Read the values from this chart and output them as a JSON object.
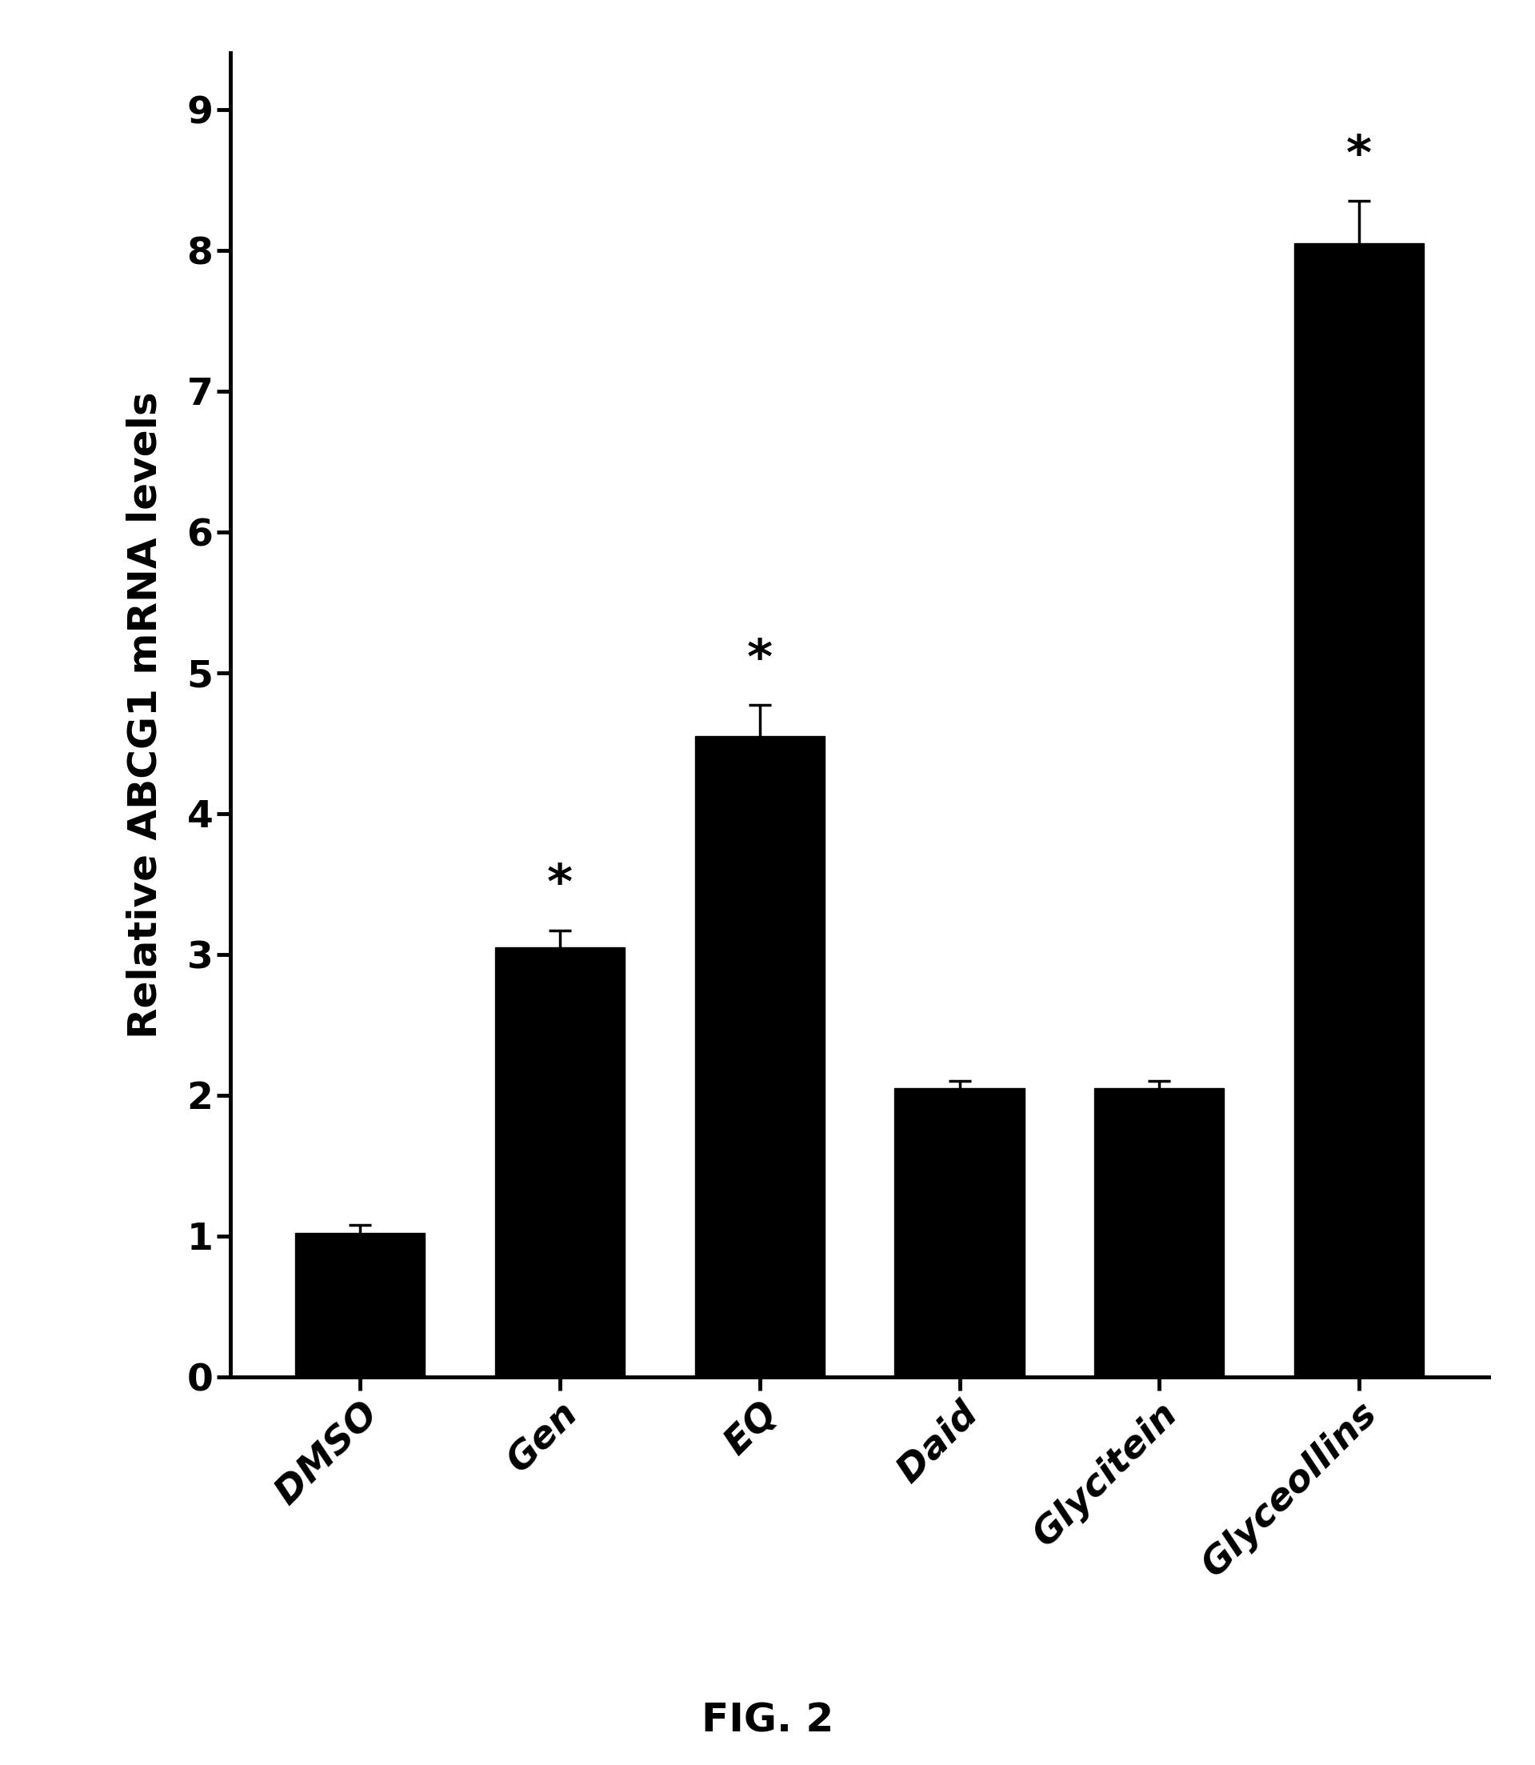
{
  "categories": [
    "DMSO",
    "Gen",
    "EQ",
    "Daid",
    "Glycitein",
    "Glyceollins"
  ],
  "values": [
    1.02,
    3.05,
    4.55,
    2.05,
    2.05,
    8.05
  ],
  "errors": [
    0.06,
    0.12,
    0.22,
    0.05,
    0.05,
    0.3
  ],
  "bar_color": "#000000",
  "background_color": "#ffffff",
  "ylabel": "Relative ABCG1 mRNA levels",
  "ylim": [
    0,
    9.4
  ],
  "yticks": [
    0,
    1,
    2,
    3,
    4,
    5,
    6,
    7,
    8,
    9
  ],
  "significance": [
    false,
    true,
    true,
    false,
    false,
    true
  ],
  "star_symbol": "*",
  "figure_label": "FIG. 2",
  "bar_width": 0.65,
  "label_fontsize": 36,
  "tick_fontsize": 34,
  "star_fontsize": 44,
  "caption_fontsize": 36,
  "axis_linewidth": 3.5,
  "error_linewidth": 2.5,
  "error_capsize": 10
}
